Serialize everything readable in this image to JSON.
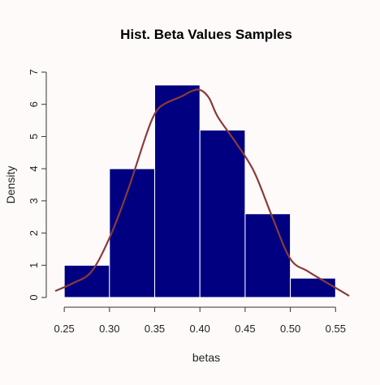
{
  "chart_data": {
    "type": "bar",
    "title": "Hist. Beta Values Samples",
    "xlabel": "betas",
    "ylabel": "Density",
    "xlim": [
      0.24,
      0.565
    ],
    "ylim": [
      0,
      7
    ],
    "x_ticks": [
      "0.25",
      "0.30",
      "0.35",
      "0.40",
      "0.45",
      "0.50",
      "0.55"
    ],
    "y_ticks": [
      "0",
      "1",
      "2",
      "3",
      "4",
      "5",
      "6",
      "7"
    ],
    "bins": [
      {
        "x0": 0.25,
        "x1": 0.3,
        "value": 1.0
      },
      {
        "x0": 0.3,
        "x1": 0.35,
        "value": 4.0
      },
      {
        "x0": 0.35,
        "x1": 0.4,
        "value": 6.6
      },
      {
        "x0": 0.4,
        "x1": 0.45,
        "value": 5.2
      },
      {
        "x0": 0.45,
        "x1": 0.5,
        "value": 2.6
      },
      {
        "x0": 0.5,
        "x1": 0.55,
        "value": 0.6
      }
    ],
    "density_curve": [
      [
        0.24,
        0.2
      ],
      [
        0.26,
        0.45
      ],
      [
        0.28,
        0.8
      ],
      [
        0.3,
        1.85
      ],
      [
        0.32,
        3.3
      ],
      [
        0.34,
        5.0
      ],
      [
        0.35,
        5.7
      ],
      [
        0.36,
        6.0
      ],
      [
        0.38,
        6.25
      ],
      [
        0.39,
        6.4
      ],
      [
        0.4,
        6.45
      ],
      [
        0.41,
        6.2
      ],
      [
        0.42,
        5.6
      ],
      [
        0.44,
        4.8
      ],
      [
        0.46,
        3.9
      ],
      [
        0.48,
        2.5
      ],
      [
        0.5,
        1.2
      ],
      [
        0.52,
        0.8
      ],
      [
        0.55,
        0.3
      ],
      [
        0.565,
        0.05
      ]
    ],
    "colors": {
      "bars": "#000080",
      "bar_edge": "#ffffff",
      "curve": "#8b3a3a",
      "background": "#fffafa"
    },
    "grid": false
  }
}
